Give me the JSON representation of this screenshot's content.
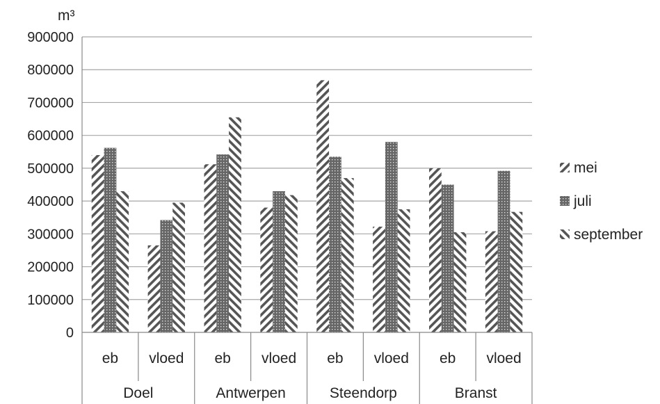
{
  "chart_data": {
    "type": "bar",
    "unit": "m³",
    "groups": [
      {
        "name": "Doel",
        "categories": [
          "eb",
          "vloed"
        ]
      },
      {
        "name": "Antwerpen",
        "categories": [
          "eb",
          "vloed"
        ]
      },
      {
        "name": "Steendorp",
        "categories": [
          "eb",
          "vloed"
        ]
      },
      {
        "name": "Branst",
        "categories": [
          "eb",
          "vloed"
        ]
      }
    ],
    "categories": [
      "eb",
      "vloed",
      "eb",
      "vloed",
      "eb",
      "vloed",
      "eb",
      "vloed"
    ],
    "series": [
      {
        "name": "mei",
        "pattern": "diag-right",
        "values": [
          540000,
          265000,
          512000,
          380000,
          768000,
          322000,
          500000,
          308000
        ]
      },
      {
        "name": "juli",
        "pattern": "dots",
        "values": [
          562000,
          342000,
          542000,
          430000,
          535000,
          580000,
          450000,
          492000
        ]
      },
      {
        "name": "september",
        "pattern": "diag-left",
        "values": [
          430000,
          395000,
          655000,
          418000,
          470000,
          375000,
          305000,
          367000
        ]
      }
    ],
    "ylim": [
      0,
      900000
    ],
    "yticks": [
      "0",
      "100000",
      "200000",
      "300000",
      "400000",
      "500000",
      "600000",
      "700000",
      "800000",
      "900000"
    ],
    "grid": true,
    "legend_position": "right",
    "colors": {
      "bar": "#555555",
      "grid": "#a6a6a6",
      "axis": "#888888"
    }
  }
}
